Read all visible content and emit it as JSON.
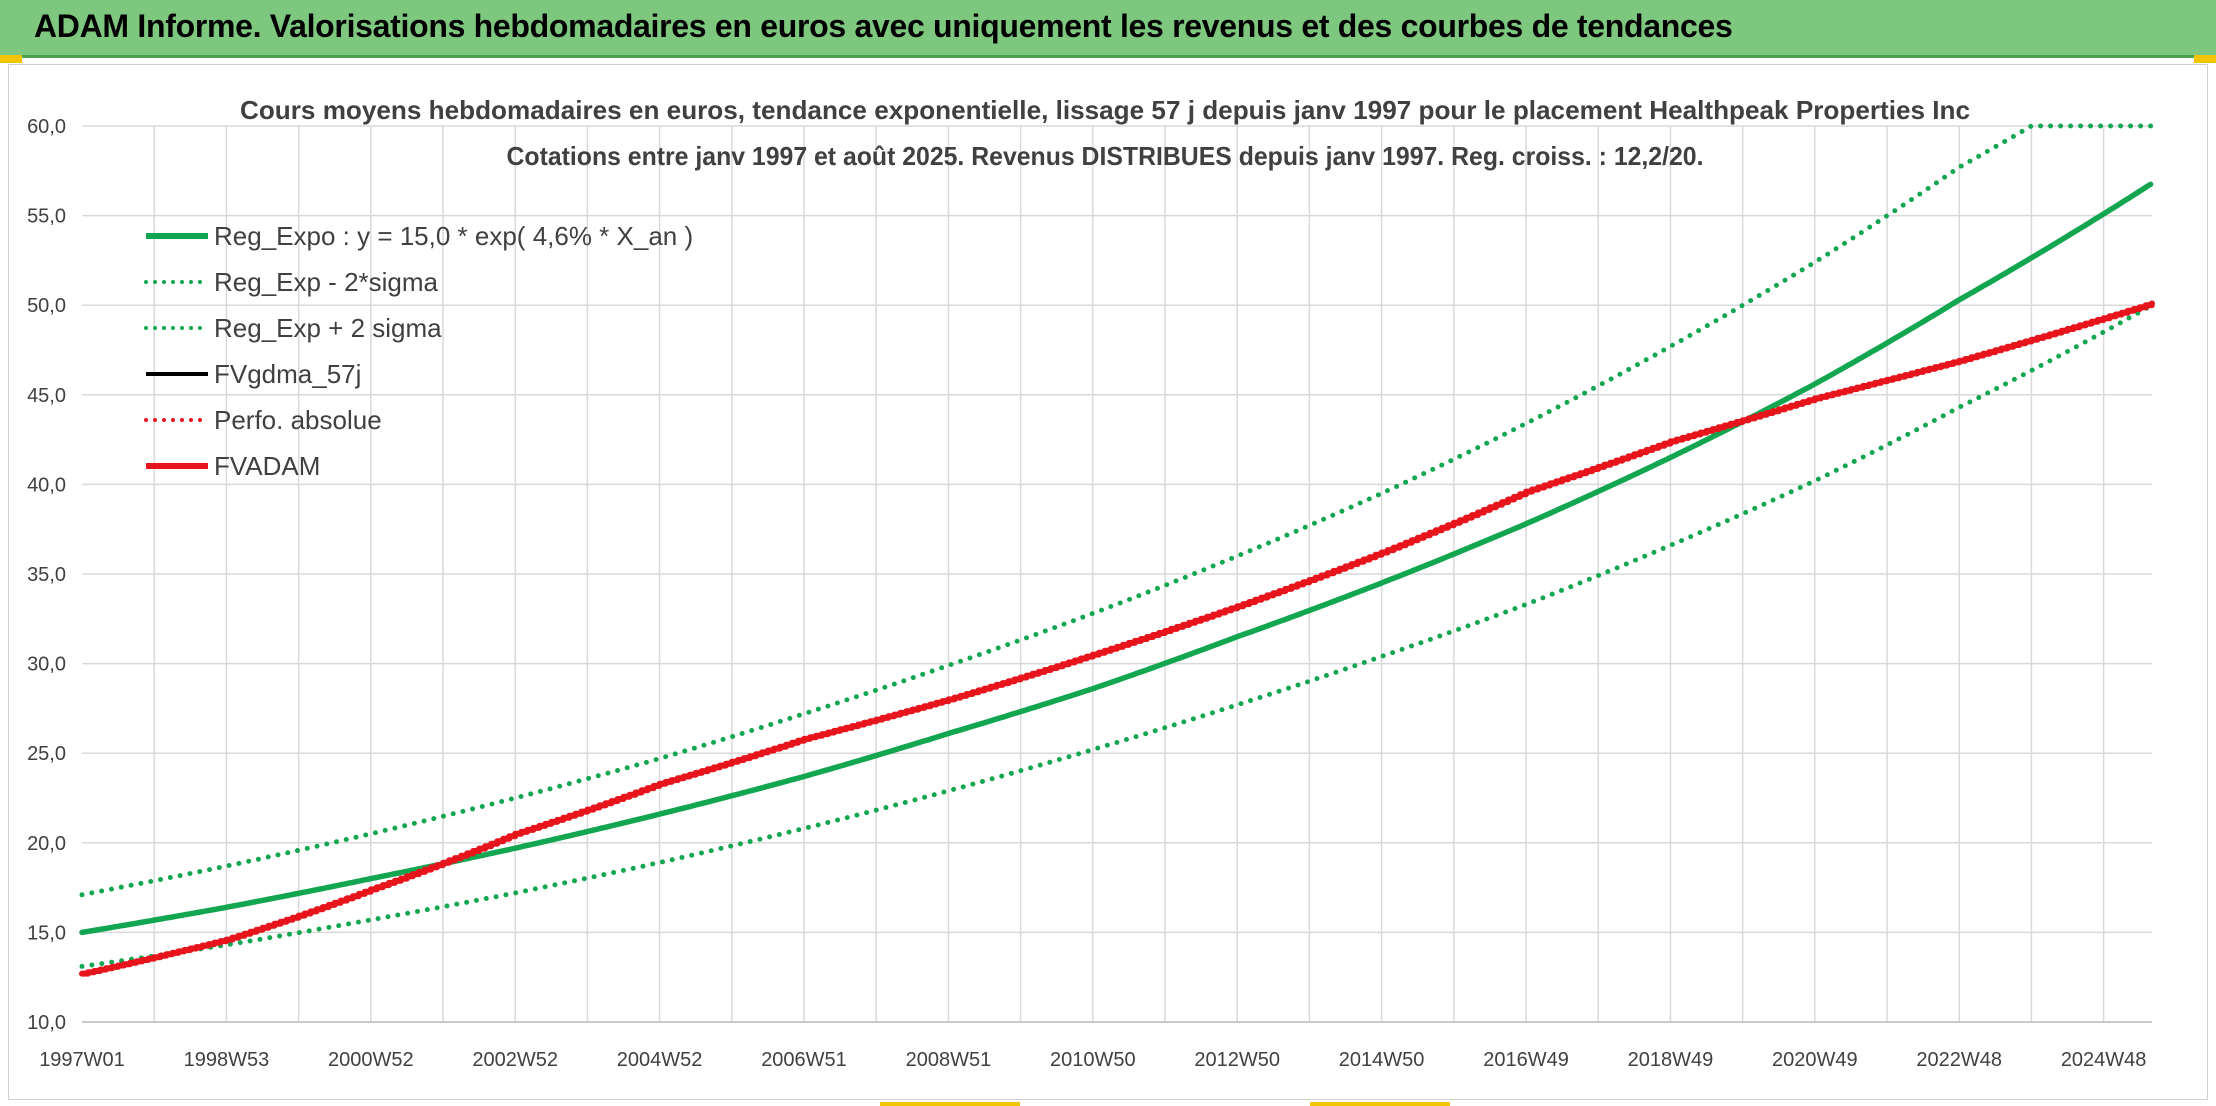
{
  "header": {
    "title": "ADAM Informe. Valorisations hebdomadaires en euros avec uniquement les revenus et des courbes de tendances"
  },
  "colors": {
    "banner": "#7dc77f",
    "green": "#13a650",
    "red": "#e8141c",
    "black": "#000000",
    "grid": "#d9d9d9",
    "text": "#404040"
  },
  "chart_data": {
    "type": "line",
    "title": "Cours moyens hebdomadaires en euros, tendance exponentielle, lissage 57 j depuis janv 1997 pour le placement Healthpeak Properties Inc",
    "subtitle": "Cotations entre janv 1997 et août 2025. Revenus DISTRIBUES depuis janv 1997. Reg. croiss. : 12,2/20.",
    "xlabel": "",
    "ylabel": "",
    "ylim": [
      10,
      60
    ],
    "y_ticks": [
      "10,0",
      "15,0",
      "20,0",
      "25,0",
      "30,0",
      "35,0",
      "40,0",
      "45,0",
      "50,0",
      "55,0",
      "60,0"
    ],
    "x_ticks": [
      "1997W01",
      "1998W53",
      "2000W52",
      "2002W52",
      "2004W52",
      "2006W51",
      "2008W51",
      "2010W50",
      "2012W50",
      "2014W50",
      "2016W49",
      "2018W49",
      "2020W49",
      "2022W48",
      "2024W48"
    ],
    "x_tick_years": [
      1997.0,
      1999.0,
      2001.0,
      2003.0,
      2005.0,
      2007.0,
      2009.0,
      2011.0,
      2013.0,
      2015.0,
      2017.0,
      2019.0,
      2021.0,
      2023.0,
      2025.0
    ],
    "xlim": [
      1997.0,
      2025.67
    ],
    "grid": true,
    "legend_position": "top-left",
    "legend": [
      {
        "label": "Reg_Expo : y = 15,0 * exp( 4,6% *  X_an )",
        "color": "#13a650",
        "style": "solid"
      },
      {
        "label": "Reg_Exp - 2*sigma",
        "color": "#13a650",
        "style": "dotted"
      },
      {
        "label": "Reg_Exp + 2 sigma",
        "color": "#13a650",
        "style": "dotted"
      },
      {
        "label": "FVgdma_57j",
        "color": "#000000",
        "style": "solid"
      },
      {
        "label": "Perfo. absolue",
        "color": "#e8141c",
        "style": "dotted"
      },
      {
        "label": "FVADAM",
        "color": "#e8141c",
        "style": "solid"
      }
    ],
    "series": [
      {
        "name": "Reg_Expo : y = 15,0 * exp( 4,6% *  X_an )",
        "style": "solid",
        "color": "#13a650",
        "x": [
          1997,
          1999,
          2001,
          2003,
          2005,
          2007,
          2009,
          2011,
          2013,
          2015,
          2017,
          2019,
          2021,
          2023,
          2025.67
        ],
        "y": [
          15.0,
          16.4,
          18.0,
          19.7,
          21.6,
          23.7,
          26.1,
          28.6,
          31.5,
          34.5,
          37.8,
          41.5,
          45.6,
          50.3,
          56.8
        ]
      },
      {
        "name": "Reg_Exp - 2*sigma",
        "style": "dotted",
        "color": "#13a650",
        "x": [
          1997,
          1999,
          2001,
          2003,
          2005,
          2007,
          2009,
          2011,
          2013,
          2015,
          2017,
          2019,
          2021,
          2023,
          2025.67
        ],
        "y": [
          13.1,
          14.3,
          15.7,
          17.2,
          18.9,
          20.8,
          22.9,
          25.2,
          27.7,
          30.4,
          33.3,
          36.6,
          40.2,
          44.3,
          50.0
        ]
      },
      {
        "name": "Reg_Exp + 2 sigma",
        "style": "dotted",
        "color": "#13a650",
        "x": [
          1997,
          1999,
          2001,
          2003,
          2005,
          2007,
          2009,
          2011,
          2013,
          2015,
          2017,
          2019,
          2021,
          2023,
          2024.0,
          2025.67
        ],
        "y": [
          17.1,
          18.7,
          20.5,
          22.5,
          24.7,
          27.2,
          29.9,
          32.8,
          36.0,
          39.5,
          43.4,
          47.7,
          52.4,
          57.7,
          60.0,
          60.0
        ]
      },
      {
        "name": "FVADAM",
        "style": "solid",
        "color": "#e8141c",
        "x": [
          1997,
          1999,
          2001,
          2003,
          2005,
          2007,
          2009,
          2011,
          2013,
          2015,
          2017,
          2019,
          2021,
          2023,
          2025.67
        ],
        "y": [
          12.7,
          14.6,
          17.4,
          20.5,
          23.3,
          25.8,
          28.0,
          30.5,
          33.2,
          36.2,
          39.6,
          42.4,
          44.8,
          46.9,
          50.1
        ]
      }
    ]
  }
}
